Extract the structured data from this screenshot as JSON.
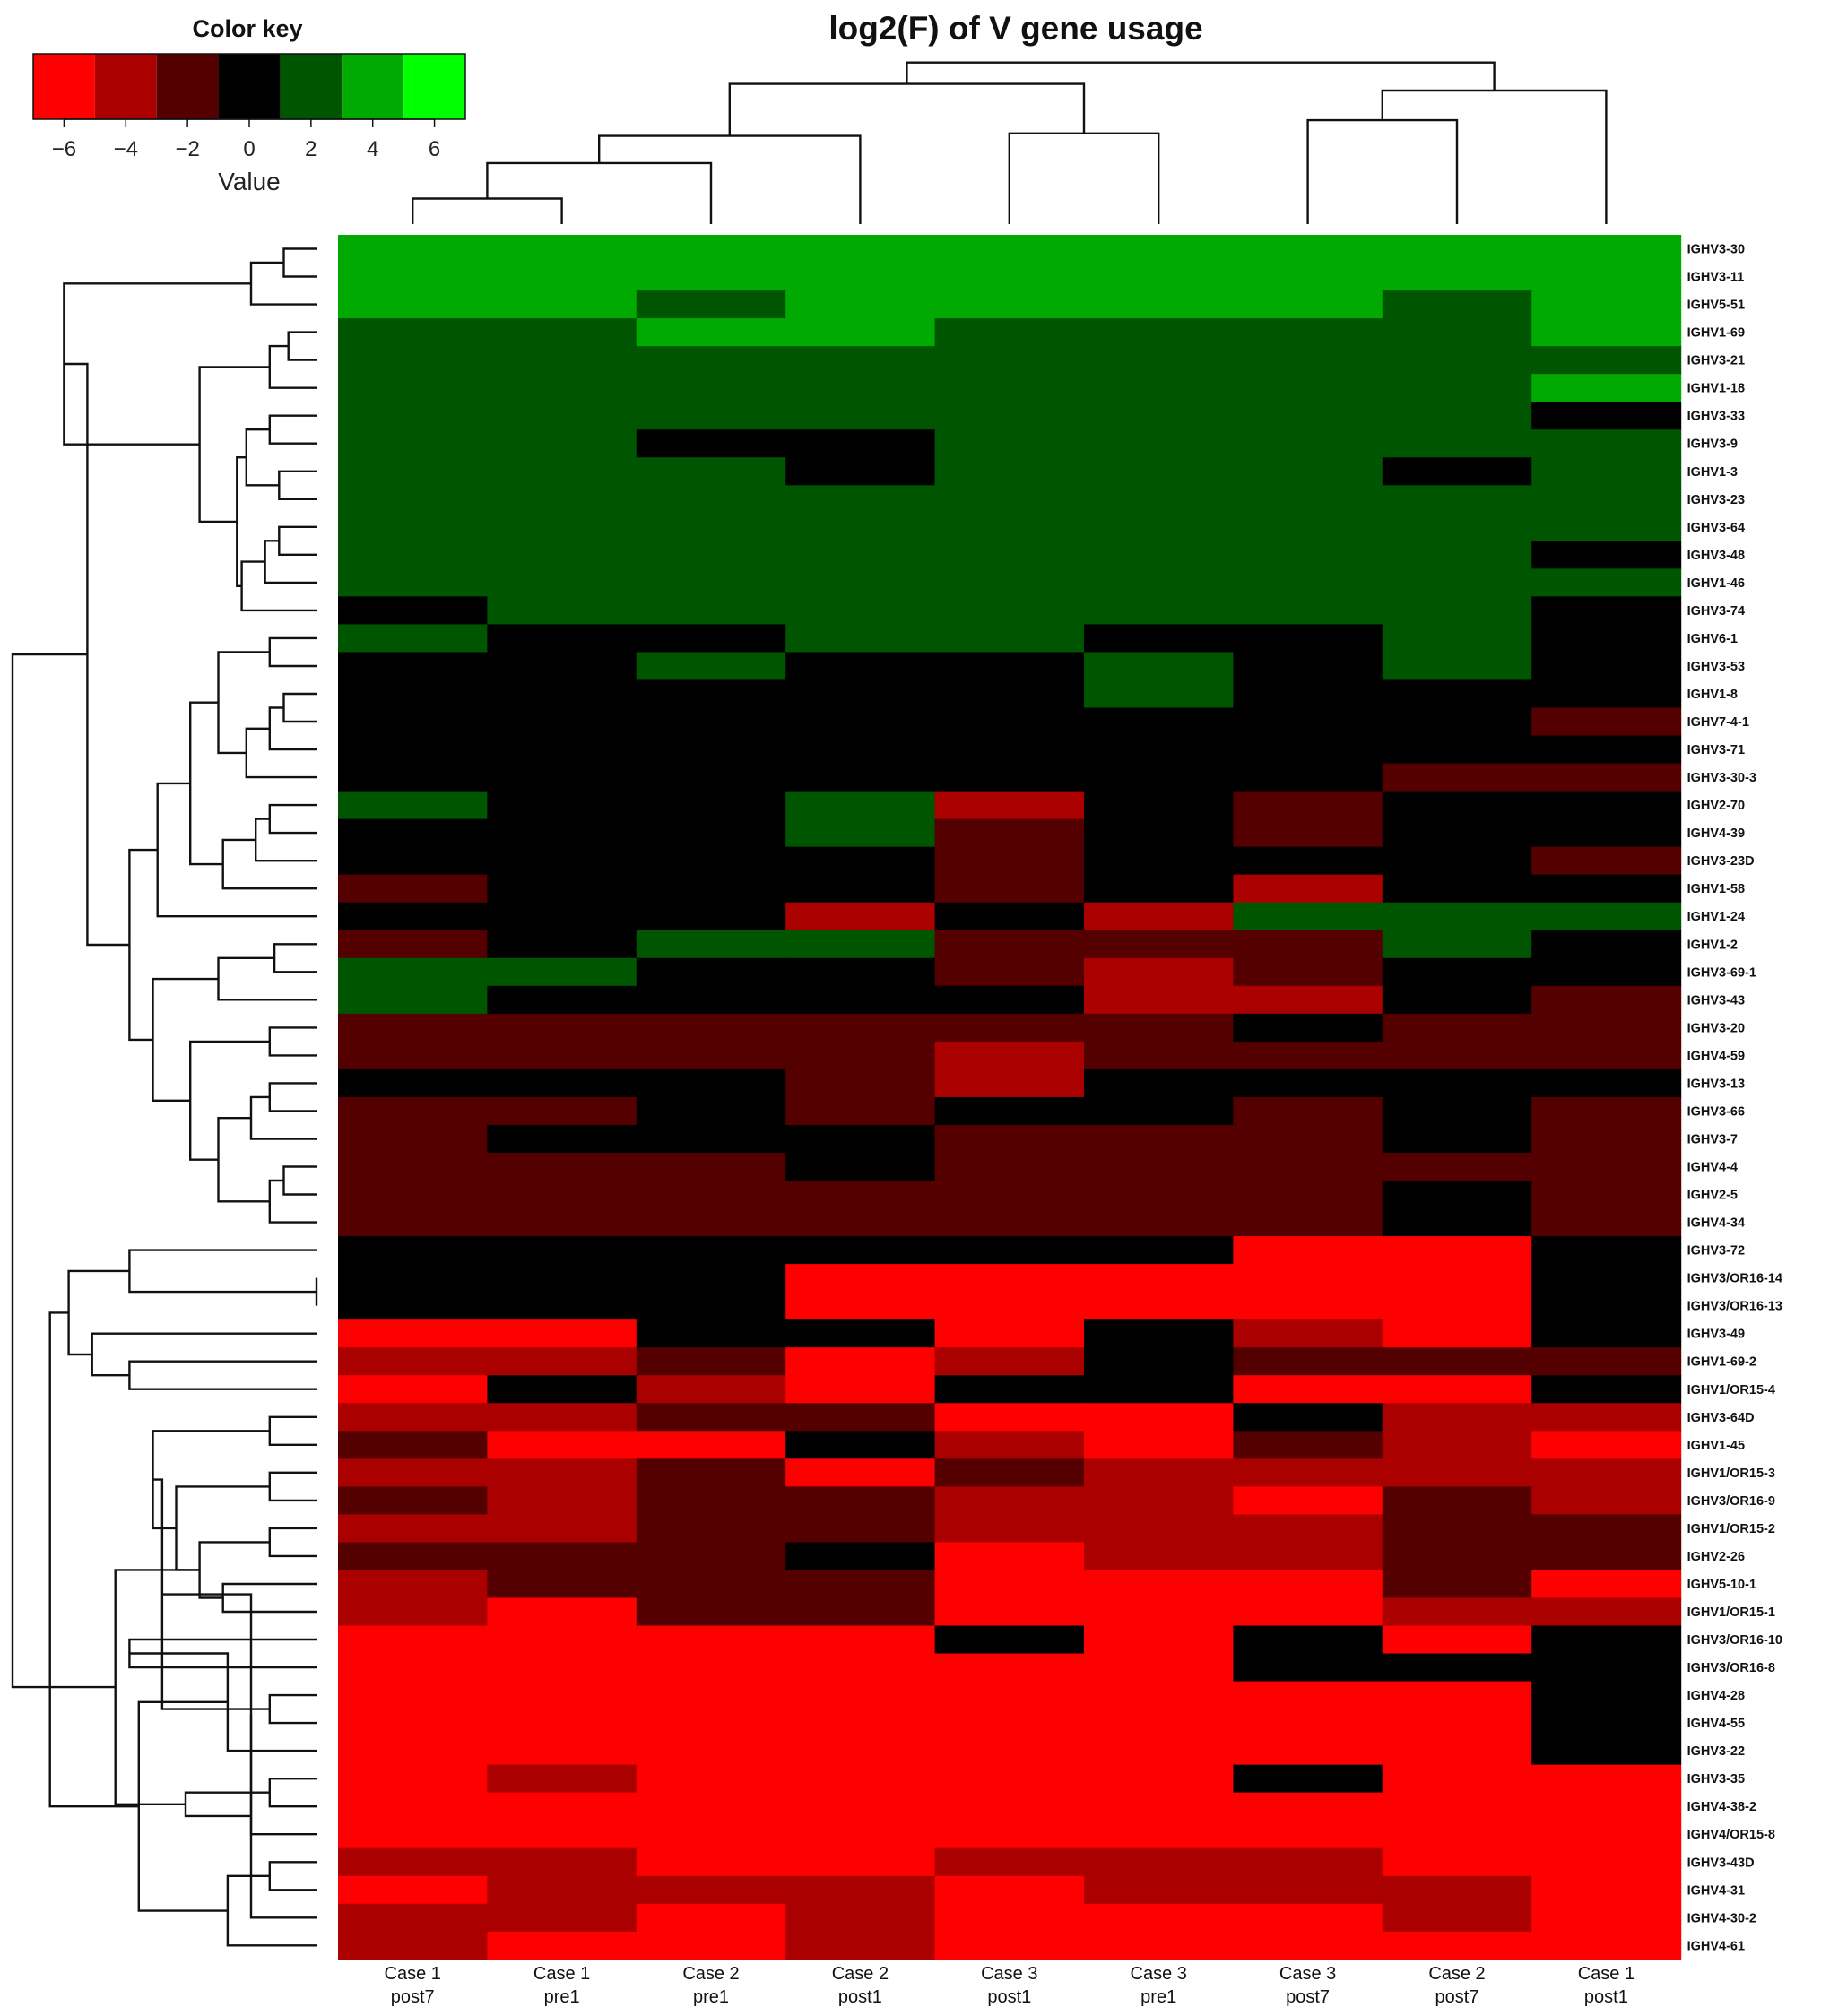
{
  "colors": {
    "neg3": "#ff0000",
    "neg2": "#aa0000",
    "neg1": "#550000",
    "zero": "#000000",
    "pos1": "#005500",
    "pos2": "#00aa00",
    "pos3": "#00ff00"
  },
  "chart_data": {
    "type": "heatmap",
    "title": "log2(F) of V gene usage",
    "color_key": {
      "title": "Color key",
      "label": "Value",
      "ticks": [
        "-6",
        "-4",
        "-2",
        "0",
        "2",
        "4",
        "6"
      ],
      "bins": [
        -7,
        -5,
        -3,
        -1,
        1,
        3,
        5,
        7
      ],
      "bin_colors": [
        "#ff0000",
        "#aa0000",
        "#550000",
        "#000000",
        "#005500",
        "#00aa00",
        "#00ff00"
      ]
    },
    "columns": [
      [
        "Case 1",
        "post7"
      ],
      [
        "Case 1",
        "pre1"
      ],
      [
        "Case 2",
        "pre1"
      ],
      [
        "Case 2",
        "post1"
      ],
      [
        "Case 3",
        "post1"
      ],
      [
        "Case 3",
        "pre1"
      ],
      [
        "Case 3",
        "post7"
      ],
      [
        "Case 2",
        "post7"
      ],
      [
        "Case 1",
        "post1"
      ]
    ],
    "rows": [
      "IGHV3-30",
      "IGHV3-11",
      "IGHV5-51",
      "IGHV1-69",
      "IGHV3-21",
      "IGHV1-18",
      "IGHV3-33",
      "IGHV3-9",
      "IGHV1-3",
      "IGHV3-23",
      "IGHV3-64",
      "IGHV3-48",
      "IGHV1-46",
      "IGHV3-74",
      "IGHV6-1",
      "IGHV3-53",
      "IGHV1-8",
      "IGHV7-4-1",
      "IGHV3-71",
      "IGHV3-30-3",
      "IGHV2-70",
      "IGHV4-39",
      "IGHV3-23D",
      "IGHV1-58",
      "IGHV1-24",
      "IGHV1-2",
      "IGHV3-69-1",
      "IGHV3-43",
      "IGHV3-20",
      "IGHV4-59",
      "IGHV3-13",
      "IGHV3-66",
      "IGHV3-7",
      "IGHV4-4",
      "IGHV2-5",
      "IGHV4-34",
      "IGHV3-72",
      "IGHV3/OR16-14",
      "IGHV3/OR16-13",
      "IGHV3-49",
      "IGHV1-69-2",
      "IGHV1/OR15-4",
      "IGHV3-64D",
      "IGHV1-45",
      "IGHV1/OR15-3",
      "IGHV3/OR16-9",
      "IGHV1/OR15-2",
      "IGHV2-26",
      "IGHV5-10-1",
      "IGHV1/OR15-1",
      "IGHV3/OR16-10",
      "IGHV3/OR16-8",
      "IGHV4-28",
      "IGHV4-55",
      "IGHV3-22",
      "IGHV3-35",
      "IGHV4-38-2",
      "IGHV4/OR15-8",
      "IGHV3-43D",
      "IGHV4-31",
      "IGHV4-30-2",
      "IGHV4-61"
    ],
    "values": [
      [
        4,
        4,
        4,
        4,
        4,
        4,
        4,
        4,
        4
      ],
      [
        4,
        4,
        4,
        4,
        4,
        4,
        4,
        4,
        4
      ],
      [
        4,
        4,
        2,
        4,
        4,
        4,
        4,
        2,
        4
      ],
      [
        2,
        2,
        4,
        4,
        2,
        2,
        2,
        2,
        4
      ],
      [
        2,
        2,
        2,
        2,
        2,
        2,
        2,
        2,
        2
      ],
      [
        2,
        2,
        2,
        2,
        2,
        2,
        2,
        2,
        4
      ],
      [
        2,
        2,
        2,
        2,
        2,
        2,
        2,
        2,
        0
      ],
      [
        2,
        2,
        0,
        0,
        2,
        2,
        2,
        2,
        2
      ],
      [
        2,
        2,
        2,
        0,
        2,
        2,
        2,
        0,
        2
      ],
      [
        2,
        2,
        2,
        2,
        2,
        2,
        2,
        2,
        2
      ],
      [
        2,
        2,
        2,
        2,
        2,
        2,
        2,
        2,
        2
      ],
      [
        2,
        2,
        2,
        2,
        2,
        2,
        2,
        2,
        0
      ],
      [
        2,
        2,
        2,
        2,
        2,
        2,
        2,
        2,
        2
      ],
      [
        0,
        2,
        2,
        2,
        2,
        2,
        2,
        2,
        0
      ],
      [
        2,
        0,
        0,
        2,
        2,
        0,
        0,
        2,
        0
      ],
      [
        0,
        0,
        2,
        0,
        0,
        2,
        0,
        2,
        0
      ],
      [
        0,
        0,
        0,
        0,
        0,
        2,
        0,
        0,
        0
      ],
      [
        0,
        0,
        0,
        0,
        0,
        0,
        0,
        0,
        -2
      ],
      [
        0,
        0,
        0,
        0,
        0,
        0,
        0,
        0,
        0
      ],
      [
        0,
        0,
        0,
        0,
        0,
        0,
        0,
        -2,
        -2
      ],
      [
        2,
        0,
        0,
        2,
        -4,
        0,
        -2,
        0,
        0
      ],
      [
        0,
        0,
        0,
        2,
        -2,
        0,
        -2,
        0,
        0
      ],
      [
        0,
        0,
        0,
        0,
        -2,
        0,
        0,
        0,
        -2
      ],
      [
        -2,
        0,
        0,
        0,
        -2,
        0,
        -4,
        0,
        0
      ],
      [
        0,
        0,
        0,
        -4,
        0,
        -4,
        2,
        2,
        2
      ],
      [
        -2,
        0,
        2,
        2,
        -2,
        -2,
        -2,
        2,
        0
      ],
      [
        2,
        2,
        0,
        0,
        -2,
        -4,
        -2,
        0,
        0
      ],
      [
        2,
        0,
        0,
        0,
        0,
        -4,
        -4,
        0,
        -2
      ],
      [
        -2,
        -2,
        -2,
        -2,
        -2,
        -2,
        0,
        -2,
        -2
      ],
      [
        -2,
        -2,
        -2,
        -2,
        -4,
        -2,
        -2,
        -2,
        -2
      ],
      [
        0,
        0,
        0,
        -2,
        -4,
        0,
        0,
        0,
        0
      ],
      [
        -2,
        -2,
        0,
        -2,
        0,
        0,
        -2,
        0,
        -2
      ],
      [
        -2,
        0,
        0,
        0,
        -2,
        -2,
        -2,
        0,
        -2
      ],
      [
        -2,
        -2,
        -2,
        0,
        -2,
        -2,
        -2,
        -2,
        -2
      ],
      [
        -2,
        -2,
        -2,
        -2,
        -2,
        -2,
        -2,
        0,
        -2
      ],
      [
        -2,
        -2,
        -2,
        -2,
        -2,
        -2,
        -2,
        0,
        -2
      ],
      [
        0,
        0,
        0,
        0,
        0,
        0,
        -6,
        -6,
        0
      ],
      [
        0,
        0,
        0,
        -6,
        -6,
        -6,
        -6,
        -6,
        0
      ],
      [
        0,
        0,
        0,
        -6,
        -6,
        -6,
        -6,
        -6,
        0
      ],
      [
        -6,
        -6,
        0,
        0,
        -6,
        0,
        -4,
        -6,
        0
      ],
      [
        -4,
        -4,
        -2,
        -6,
        -4,
        0,
        -2,
        -2,
        -2
      ],
      [
        -6,
        0,
        -4,
        -6,
        0,
        0,
        -6,
        -6,
        0
      ],
      [
        -4,
        -4,
        -2,
        -2,
        -6,
        -6,
        0,
        -4,
        -4
      ],
      [
        -2,
        -6,
        -6,
        0,
        -4,
        -6,
        -2,
        -4,
        -6
      ],
      [
        -4,
        -4,
        -2,
        -6,
        -2,
        -4,
        -4,
        -4,
        -4
      ],
      [
        -2,
        -4,
        -2,
        -2,
        -4,
        -4,
        -6,
        -2,
        -4
      ],
      [
        -4,
        -4,
        -2,
        -2,
        -4,
        -4,
        -4,
        -2,
        -2
      ],
      [
        -2,
        -2,
        -2,
        0,
        -6,
        -4,
        -4,
        -2,
        -2
      ],
      [
        -4,
        -2,
        -2,
        -2,
        -6,
        -6,
        -6,
        -2,
        -6
      ],
      [
        -4,
        -6,
        -2,
        -2,
        -6,
        -6,
        -6,
        -4,
        -4
      ],
      [
        -6,
        -6,
        -6,
        -6,
        0,
        -6,
        0,
        -6,
        0
      ],
      [
        -6,
        -6,
        -6,
        -6,
        -6,
        -6,
        0,
        0,
        0
      ],
      [
        -6,
        -6,
        -6,
        -6,
        -6,
        -6,
        -6,
        -6,
        0
      ],
      [
        -6,
        -6,
        -6,
        -6,
        -6,
        -6,
        -6,
        -6,
        0
      ],
      [
        -6,
        -6,
        -6,
        -6,
        -6,
        -6,
        -6,
        -6,
        0
      ],
      [
        -6,
        -4,
        -6,
        -6,
        -6,
        -6,
        0,
        -6,
        -6
      ],
      [
        -6,
        -6,
        -6,
        -6,
        -6,
        -6,
        -6,
        -6,
        -6
      ],
      [
        -6,
        -6,
        -6,
        -6,
        -6,
        -6,
        -6,
        -6,
        -6
      ],
      [
        -4,
        -4,
        -6,
        -6,
        -4,
        -4,
        -4,
        -6,
        -6
      ],
      [
        -6,
        -4,
        -4,
        -4,
        -6,
        -4,
        -4,
        -4,
        -6
      ],
      [
        -4,
        -4,
        -6,
        -4,
        -6,
        -6,
        -6,
        -4,
        -6
      ],
      [
        -4,
        -6,
        -6,
        -4,
        -6,
        -6,
        -6,
        -6,
        -6
      ]
    ],
    "column_dendrogram": [
      [
        0,
        1,
        0.155
      ],
      [
        2,
        9,
        0.37
      ],
      [
        3,
        10,
        0.535
      ],
      [
        4,
        5,
        0.55
      ],
      [
        6,
        7,
        0.63
      ],
      [
        8,
        13,
        0.81
      ],
      [
        11,
        12,
        0.85
      ],
      [
        14,
        15,
        0.98
      ]
    ],
    "row_dendrogram": [
      [
        0,
        1,
        0.035
      ],
      [
        62,
        2,
        0.07
      ],
      [
        3,
        4,
        0.03
      ],
      [
        64,
        5,
        0.05
      ],
      [
        6,
        7,
        0.05
      ],
      [
        8,
        9,
        0.04
      ],
      [
        66,
        67,
        0.075
      ],
      [
        10,
        11,
        0.04
      ],
      [
        69,
        12,
        0.055
      ],
      [
        70,
        13,
        0.08
      ],
      [
        68,
        71,
        0.085
      ],
      [
        65,
        72,
        0.125
      ],
      [
        63,
        73,
        0.27
      ],
      [
        14,
        15,
        0.05
      ],
      [
        16,
        17,
        0.035
      ],
      [
        76,
        18,
        0.05
      ],
      [
        77,
        19,
        0.075
      ],
      [
        75,
        78,
        0.105
      ],
      [
        20,
        21,
        0.05
      ],
      [
        80,
        22,
        0.065
      ],
      [
        81,
        23,
        0.1
      ],
      [
        79,
        82,
        0.135
      ],
      [
        24,
        83,
        0.17
      ],
      [
        25,
        26,
        0.045
      ],
      [
        85,
        27,
        0.105
      ],
      [
        28,
        29,
        0.05
      ],
      [
        30,
        31,
        0.05
      ],
      [
        88,
        32,
        0.07
      ],
      [
        33,
        34,
        0.035
      ],
      [
        90,
        35,
        0.05
      ],
      [
        89,
        91,
        0.105
      ],
      [
        87,
        92,
        0.135
      ],
      [
        86,
        93,
        0.175
      ],
      [
        84,
        94,
        0.2
      ],
      [
        74,
        95,
        0.245
      ],
      [
        37,
        38,
        0.0
      ],
      [
        36,
        97,
        0.2
      ],
      [
        40,
        41,
        0.2
      ],
      [
        39,
        99,
        0.24
      ],
      [
        98,
        100,
        0.265
      ],
      [
        42,
        43,
        0.05
      ],
      [
        44,
        45,
        0.05
      ],
      [
        46,
        47,
        0.05
      ],
      [
        48,
        49,
        0.1
      ],
      [
        104,
        105,
        0.125
      ],
      [
        103,
        106,
        0.15
      ],
      [
        102,
        107,
        0.175
      ],
      [
        50,
        51,
        0.2
      ],
      [
        52,
        53,
        0.05
      ],
      [
        109,
        54,
        0.095
      ],
      [
        108,
        110,
        0.165
      ],
      [
        55,
        56,
        0.05
      ],
      [
        112,
        57,
        0.07
      ],
      [
        58,
        59,
        0.05
      ],
      [
        114,
        60,
        0.07
      ],
      [
        115,
        61,
        0.095
      ],
      [
        113,
        116,
        0.14
      ],
      [
        111,
        117,
        0.19
      ],
      [
        106,
        118,
        0.215
      ],
      [
        101,
        119,
        0.285
      ],
      [
        96,
        120,
        0.325
      ]
    ]
  }
}
